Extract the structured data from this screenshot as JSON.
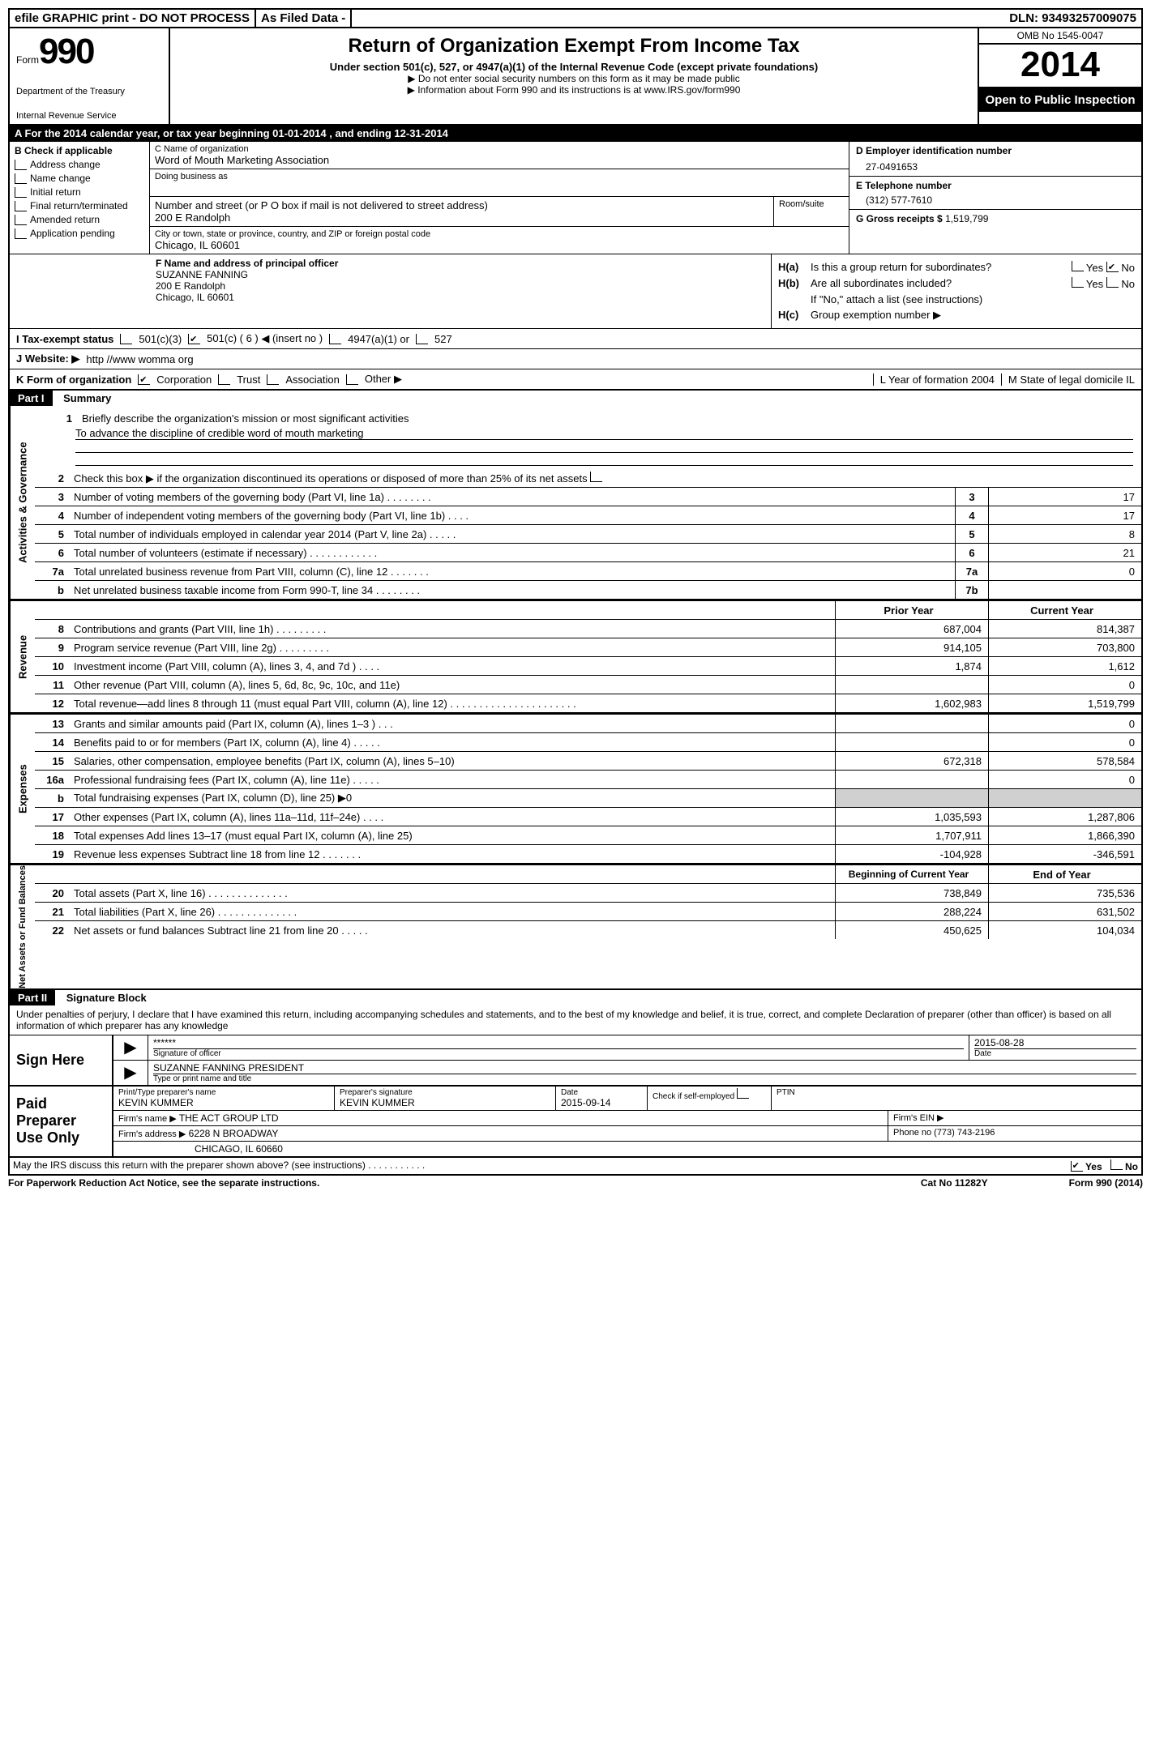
{
  "topbar": {
    "efile": "efile GRAPHIC print - DO NOT PROCESS",
    "asfiled": "As Filed Data -",
    "dln_label": "DLN:",
    "dln": "93493257009075"
  },
  "header": {
    "form_word": "Form",
    "form_num": "990",
    "dept1": "Department of the Treasury",
    "dept2": "Internal Revenue Service",
    "title": "Return of Organization Exempt From Income Tax",
    "subtitle": "Under section 501(c), 527, or 4947(a)(1) of the Internal Revenue Code (except private foundations)",
    "note1": "▶ Do not enter social security numbers on this form as it may be made public",
    "note2_pre": "▶ Information about Form 990 and its instructions is at ",
    "note2_link": "www.IRS.gov/form990",
    "omb": "OMB No 1545-0047",
    "year": "2014",
    "open": "Open to Public Inspection"
  },
  "sectionA": {
    "text_a": "A  For the 2014 calendar year, or tax year beginning 01-01-2014     , and ending 12-31-2014",
    "b_label": "B Check if applicable",
    "b_items": [
      "Address change",
      "Name change",
      "Initial return",
      "Final return/terminated",
      "Amended return",
      "Application pending"
    ],
    "c_name_label": "C Name of organization",
    "c_name": "Word of Mouth Marketing Association",
    "dba_label": "Doing business as",
    "street_label": "Number and street (or P O  box if mail is not delivered to street address)",
    "room_label": "Room/suite",
    "street": "200 E Randolph",
    "city_label": "City or town, state or province, country, and ZIP or foreign postal code",
    "city": "Chicago, IL  60601",
    "f_label": "F  Name and address of principal officer",
    "f_name": "SUZANNE FANNING",
    "f_street": "200 E Randolph",
    "f_city": "Chicago, IL  60601",
    "d_label": "D Employer identification number",
    "d_val": "27-0491653",
    "e_label": "E Telephone number",
    "e_val": "(312) 577-7610",
    "g_label": "G Gross receipts $",
    "g_val": "1,519,799",
    "ha_label": "H(a)",
    "ha_text": "Is this a group return for subordinates?",
    "hb_label": "H(b)",
    "hb_text": "Are all subordinates included?",
    "hb_note": "If \"No,\" attach a list  (see instructions)",
    "hc_label": "H(c)",
    "hc_text": "Group exemption number ▶",
    "yes": "Yes",
    "no": "No"
  },
  "taxstatus": {
    "label": "I  Tax-exempt status",
    "opt1": "501(c)(3)",
    "opt2": "501(c) ( 6 ) ◀ (insert no )",
    "opt3": "4947(a)(1) or",
    "opt4": "527"
  },
  "website": {
    "label": "J  Website: ▶",
    "val": "http //www womma org"
  },
  "kform": {
    "label": "K Form of organization",
    "opts": [
      "Corporation",
      "Trust",
      "Association",
      "Other ▶"
    ],
    "l_label": "L Year of formation  2004",
    "m_label": "M State of legal domicile   IL"
  },
  "part1": {
    "label": "Part I",
    "title": "Summary",
    "side_activities": "Activities & Governance",
    "side_revenue": "Revenue",
    "side_expenses": "Expenses",
    "side_net": "Net Assets or Fund Balances",
    "line1_label": "Briefly describe the organization's mission or most significant activities",
    "line1_val": "To advance the discipline of credible word of mouth marketing",
    "line2": "Check this box ▶      if the organization discontinued its operations or disposed of more than 25% of its net assets",
    "lines_gov": [
      {
        "n": "3",
        "desc": "Number of voting members of the governing body (Part VI, line 1a)   .    .    .    .    .    .    .    .",
        "box": "3",
        "val": "17"
      },
      {
        "n": "4",
        "desc": "Number of independent voting members of the governing body (Part VI, line 1b)    .    .    .    .",
        "box": "4",
        "val": "17"
      },
      {
        "n": "5",
        "desc": "Total number of individuals employed in calendar year 2014 (Part V, line 2a)   .    .    .    .    .",
        "box": "5",
        "val": "8"
      },
      {
        "n": "6",
        "desc": "Total number of volunteers (estimate if necessary)    .    .    .    .    .    .    .    .    .    .    .    .",
        "box": "6",
        "val": "21"
      },
      {
        "n": "7a",
        "desc": "Total unrelated business revenue from Part VIII, column (C), line 12    .    .    .    .    .    .    .",
        "box": "7a",
        "val": "0"
      },
      {
        "n": "b",
        "desc": "Net unrelated business taxable income from Form 990-T, line 34    .    .    .    .    .    .    .    .",
        "box": "7b",
        "val": ""
      }
    ],
    "col_prior": "Prior Year",
    "col_curr": "Current Year",
    "lines_rev": [
      {
        "n": "8",
        "desc": "Contributions and grants (Part VIII, line 1h)    .    .    .    .    .    .    .    .    .",
        "p": "687,004",
        "c": "814,387"
      },
      {
        "n": "9",
        "desc": "Program service revenue (Part VIII, line 2g)    .    .    .    .    .    .    .    .    .",
        "p": "914,105",
        "c": "703,800"
      },
      {
        "n": "10",
        "desc": "Investment income (Part VIII, column (A), lines 3, 4, and 7d )    .    .    .    .",
        "p": "1,874",
        "c": "1,612"
      },
      {
        "n": "11",
        "desc": "Other revenue (Part VIII, column (A), lines 5, 6d, 8c, 9c, 10c, and 11e)",
        "p": "",
        "c": "0"
      },
      {
        "n": "12",
        "desc": "Total revenue—add lines 8 through 11 (must equal Part VIII, column (A), line 12)    .    .    .    .    .    .    .    .    .    .    .    .    .    .    .    .    .    .    .    .    .    .",
        "p": "1,602,983",
        "c": "1,519,799"
      }
    ],
    "lines_exp": [
      {
        "n": "13",
        "desc": "Grants and similar amounts paid (Part IX, column (A), lines 1–3 )    .    .    .",
        "p": "",
        "c": "0"
      },
      {
        "n": "14",
        "desc": "Benefits paid to or for members (Part IX, column (A), line 4)    .    .    .    .    .",
        "p": "",
        "c": "0"
      },
      {
        "n": "15",
        "desc": "Salaries, other compensation, employee benefits (Part IX, column (A), lines 5–10)",
        "p": "672,318",
        "c": "578,584"
      },
      {
        "n": "16a",
        "desc": "Professional fundraising fees (Part IX, column (A), line 11e)    .    .    .    .    .",
        "p": "",
        "c": "0"
      },
      {
        "n": "b",
        "desc": "Total fundraising expenses (Part IX, column (D), line 25) ▶0",
        "p": "shaded",
        "c": "shaded"
      },
      {
        "n": "17",
        "desc": "Other expenses (Part IX, column (A), lines 11a–11d, 11f–24e)    .    .    .    .",
        "p": "1,035,593",
        "c": "1,287,806"
      },
      {
        "n": "18",
        "desc": "Total expenses  Add lines 13–17 (must equal Part IX, column (A), line 25)",
        "p": "1,707,911",
        "c": "1,866,390"
      },
      {
        "n": "19",
        "desc": "Revenue less expenses  Subtract line 18 from line 12    .    .    .    .    .    .    .",
        "p": "-104,928",
        "c": "-346,591"
      }
    ],
    "col_begin": "Beginning of Current Year",
    "col_end": "End of Year",
    "lines_net": [
      {
        "n": "20",
        "desc": "Total assets (Part X, line 16)    .    .    .    .    .    .    .    .    .    .    .    .    .    .",
        "p": "738,849",
        "c": "735,536"
      },
      {
        "n": "21",
        "desc": "Total liabilities (Part X, line 26)    .    .    .    .    .    .    .    .    .    .    .    .    .    .",
        "p": "288,224",
        "c": "631,502"
      },
      {
        "n": "22",
        "desc": "Net assets or fund balances  Subtract line 21 from line 20    .    .    .    .    .",
        "p": "450,625",
        "c": "104,034"
      }
    ]
  },
  "part2": {
    "label": "Part II",
    "title": "Signature Block",
    "perjury": "Under penalties of perjury, I declare that I have examined this return, including accompanying schedules and statements, and to the best of my knowledge and belief, it is true, correct, and complete  Declaration of preparer (other than officer) is based on all information of which preparer has any knowledge",
    "sign_here": "Sign Here",
    "stars": "******",
    "sig_officer_label": "Signature of officer",
    "date_label": "Date",
    "sig_date": "2015-08-28",
    "officer_name": "SUZANNE FANNING PRESIDENT",
    "type_name_label": "Type or print name and title",
    "paid_prep": "Paid Preparer Use Only",
    "prep_name_label": "Print/Type preparer's name",
    "prep_name": "KEVIN KUMMER",
    "prep_sig_label": "Preparer's signature",
    "prep_sig": "KEVIN KUMMER",
    "prep_date_label": "Date",
    "prep_date": "2015-09-14",
    "check_self": "Check       if self-employed",
    "ptin": "PTIN",
    "firm_name_label": "Firm's name    ▶",
    "firm_name": "THE ACT GROUP LTD",
    "firm_ein_label": "Firm's EIN ▶",
    "firm_addr_label": "Firm's address ▶",
    "firm_addr1": "6228 N BROADWAY",
    "firm_addr2": "CHICAGO, IL  60660",
    "firm_phone_label": "Phone no  (773) 743-2196",
    "discuss": "May the IRS discuss this return with the preparer shown above? (see instructions)    .    .    .    .    .    .    .    .    .    .    .",
    "discuss_yes": "Yes",
    "discuss_no": "No"
  },
  "footer": {
    "paperwork": "For Paperwork Reduction Act Notice, see the separate instructions.",
    "cat": "Cat No  11282Y",
    "form": "Form 990 (2014)"
  }
}
